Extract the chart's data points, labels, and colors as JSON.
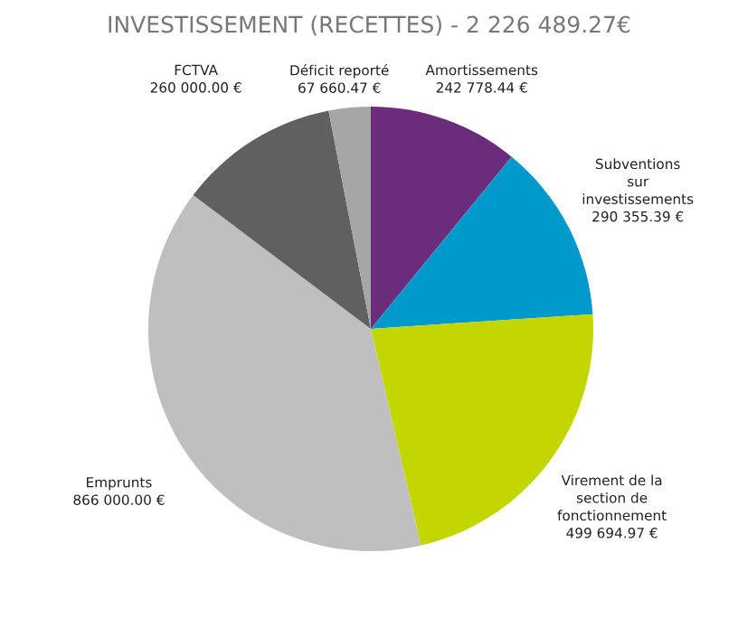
{
  "chart_data": {
    "type": "pie",
    "title": "INVESTISSEMENT (RECETTES) - 2 226 489.27€",
    "categories": [
      "Amortissements",
      "Subventions\nsur\ninvestissements",
      "Virement de la\nsection de\nfonctionnement",
      "Emprunts",
      "FCTVA",
      "Déficit reporté"
    ],
    "values": [
      242778.44,
      290355.39,
      499694.97,
      866000.0,
      260000.0,
      67660.47
    ],
    "value_labels": [
      "242 778.44 €",
      "290 355.39 €",
      "499 694.97 €",
      "866 000.00 €",
      "260 000.00 €",
      "67 660.47 €"
    ],
    "colors": [
      "#6b2d7b",
      "#0099cc",
      "#c4d600",
      "#bfbfbf",
      "#606060",
      "#a6a6a6"
    ]
  }
}
